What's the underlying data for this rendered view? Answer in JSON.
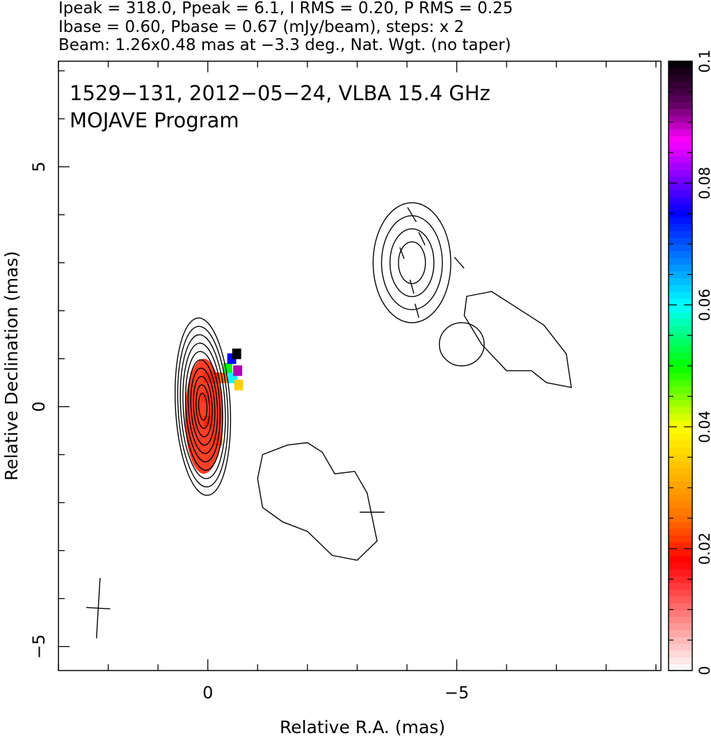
{
  "header": {
    "line1": "Ipeak = 318.0, Ppeak = 6.1, I RMS = 0.20, P RMS = 0.25",
    "line2": "Ibase = 0.60, Pbase = 0.67 (mJy/beam), steps: x 2",
    "line3": "Beam: 1.26x0.48 mas at −3.3 deg., Nat. Wgt. (no taper)"
  },
  "chart_data": {
    "type": "heatmap",
    "title": "1529−131, 2012−05−24, VLBA 15.4 GHz",
    "subtitle": "MOJAVE Program",
    "xlabel": "Relative R.A. (mas)",
    "ylabel": "Relative Declination (mas)",
    "xlim": [
      3.0,
      -9.1
    ],
    "ylim": [
      -5.5,
      7.2
    ],
    "xticks": [
      {
        "value": 0,
        "label": "0"
      },
      {
        "value": -5,
        "label": "−5"
      }
    ],
    "yticks": [
      {
        "value": -5,
        "label": "−5"
      },
      {
        "value": 0,
        "label": "0"
      },
      {
        "value": 5,
        "label": "5"
      }
    ],
    "colorbar": {
      "range": [
        0,
        0.1
      ],
      "ticks": [
        {
          "value": 0,
          "label": "0"
        },
        {
          "value": 0.02,
          "label": "0.02"
        },
        {
          "value": 0.04,
          "label": "0.04"
        },
        {
          "value": 0.06,
          "label": "0.06"
        },
        {
          "value": 0.08,
          "label": "0.08"
        },
        {
          "value": 0.1,
          "label": "0.1"
        }
      ],
      "stops": [
        {
          "v": 0.0,
          "c": "#ffffff"
        },
        {
          "v": 0.018,
          "c": "#ff0000"
        },
        {
          "v": 0.025,
          "c": "#ff7000"
        },
        {
          "v": 0.04,
          "c": "#ffff00"
        },
        {
          "v": 0.05,
          "c": "#00ff00"
        },
        {
          "v": 0.06,
          "c": "#00ffff"
        },
        {
          "v": 0.075,
          "c": "#0000ff"
        },
        {
          "v": 0.087,
          "c": "#ff00ff"
        },
        {
          "v": 0.093,
          "c": "#600060"
        },
        {
          "v": 0.1,
          "c": "#000000"
        }
      ]
    },
    "contours": [
      {
        "x": 0.1,
        "y": 0.0,
        "rx": 0.55,
        "ry": 1.85,
        "rot": -3,
        "levels": 10
      },
      {
        "x": -4.1,
        "y": 3.0,
        "rx": 0.78,
        "ry": 1.25,
        "rot": 0,
        "levels": 4
      },
      {
        "x": -5.1,
        "y": 1.3,
        "rx": 0.45,
        "ry": 0.45,
        "rot": 0,
        "levels": 1
      }
    ],
    "jet_outlines": [
      [
        [
          -1.1,
          -1.0
        ],
        [
          -1.6,
          -0.8
        ],
        [
          -2.0,
          -0.75
        ],
        [
          -2.3,
          -0.95
        ],
        [
          -2.55,
          -1.4
        ],
        [
          -2.95,
          -1.35
        ],
        [
          -3.2,
          -1.8
        ],
        [
          -3.4,
          -2.8
        ],
        [
          -3.0,
          -3.2
        ],
        [
          -2.5,
          -3.1
        ],
        [
          -2.0,
          -2.6
        ],
        [
          -1.5,
          -2.4
        ],
        [
          -1.1,
          -2.1
        ],
        [
          -1.0,
          -1.5
        ]
      ],
      [
        [
          -5.2,
          2.3
        ],
        [
          -5.7,
          2.4
        ],
        [
          -6.3,
          2.0
        ],
        [
          -6.75,
          1.7
        ],
        [
          -7.2,
          1.1
        ],
        [
          -7.3,
          0.4
        ],
        [
          -6.8,
          0.5
        ],
        [
          -6.5,
          0.75
        ],
        [
          -6.0,
          0.75
        ],
        [
          -5.5,
          1.3
        ],
        [
          -5.15,
          1.9
        ]
      ]
    ],
    "pol_pixels": [
      {
        "x": 0.0,
        "y": 0.6,
        "v": 0.015
      },
      {
        "x": -0.15,
        "y": 0.6,
        "v": 0.018
      },
      {
        "x": -0.3,
        "y": 0.6,
        "v": 0.025
      },
      {
        "x": -0.4,
        "y": 0.8,
        "v": 0.05
      },
      {
        "x": -0.48,
        "y": 1.0,
        "v": 0.075
      },
      {
        "x": -0.58,
        "y": 1.1,
        "v": 0.1
      },
      {
        "x": -0.5,
        "y": 0.6,
        "v": 0.06
      },
      {
        "x": -0.6,
        "y": 0.75,
        "v": 0.09
      },
      {
        "x": -0.62,
        "y": 0.45,
        "v": 0.035
      },
      {
        "x": 0.05,
        "y": 0.2,
        "v": 0.012
      },
      {
        "x": 0.0,
        "y": -0.3,
        "v": 0.018
      },
      {
        "x": -0.2,
        "y": -0.7,
        "v": 0.025
      }
    ],
    "pol_vectors": [
      {
        "x": -4.1,
        "y": 4.0,
        "angle": 60,
        "len": 0.35
      },
      {
        "x": -4.3,
        "y": 3.5,
        "angle": 65,
        "len": 0.3
      },
      {
        "x": -3.9,
        "y": 3.2,
        "angle": 70,
        "len": 0.25
      },
      {
        "x": -4.1,
        "y": 2.5,
        "angle": 75,
        "len": 0.3
      },
      {
        "x": -4.2,
        "y": 2.0,
        "angle": 75,
        "len": 0.3
      },
      {
        "x": -5.05,
        "y": 3.0,
        "angle": 50,
        "len": 0.3
      },
      {
        "x": -3.3,
        "y": -2.2,
        "angle": 0,
        "len": 0.5
      }
    ],
    "beam": {
      "x": 2.2,
      "y": -4.2,
      "major": 1.26,
      "minor": 0.48,
      "pa": -3.3
    }
  }
}
